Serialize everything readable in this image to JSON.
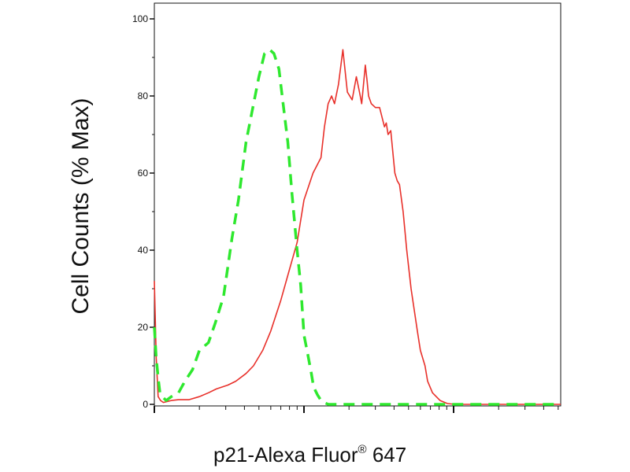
{
  "chart_data": {
    "type": "line",
    "xlabel_main": "p21-Alexa Fluor",
    "xlabel_sup": "®",
    "xlabel_tail": " 647",
    "ylabel": "Cell Counts (% Max)",
    "yticks": [
      "0",
      "20",
      "40",
      "60",
      "80",
      "100"
    ],
    "ylim": [
      0,
      100
    ],
    "x_scale": "log",
    "grid": false,
    "series": [
      {
        "color": "#e8302a",
        "style": "solid",
        "x": [
          1.0,
          1.03,
          1.06,
          1.1,
          1.15,
          1.3,
          1.45,
          1.7,
          2.0,
          2.3,
          2.6,
          3.1,
          3.5,
          4.1,
          4.6,
          5.3,
          6.0,
          7.0,
          8.0,
          9.0,
          10.0,
          11.5,
          13.0,
          13.7,
          14.5,
          15.3,
          16.0,
          17.0,
          18.2,
          19.5,
          21.0,
          22.4,
          23.5,
          24.3,
          25.7,
          26.4,
          27.0,
          28.2,
          30.0,
          32.0,
          34.5,
          35.5,
          36.5,
          38.0,
          40.5,
          42.0,
          43.5,
          46.0,
          48.6,
          52.0,
          57.3,
          60.0,
          64.4,
          67.0,
          72.3,
          81.2,
          91.0,
          102.0,
          115.0,
          128.0,
          140.0,
          153.0,
          180.0,
          230.0,
          320.0,
          500.0,
          800.0,
          1200.0
        ],
        "y": [
          32,
          12,
          2,
          1,
          0.5,
          1,
          1.2,
          1.2,
          2,
          3,
          4,
          5,
          6,
          8,
          10,
          14,
          19,
          27,
          35,
          42,
          53,
          60,
          64,
          72,
          78,
          80,
          78,
          83,
          92,
          81,
          79,
          85,
          81,
          78,
          88,
          84,
          80,
          78,
          77,
          77,
          72,
          73,
          70,
          71,
          60,
          58,
          57,
          50,
          40,
          30,
          19,
          14,
          10,
          6,
          3,
          1,
          0.2,
          0,
          0,
          0,
          0,
          0,
          0,
          0,
          0,
          0,
          0,
          0
        ]
      },
      {
        "color": "#2ee82e",
        "style": "dashed",
        "x": [
          1.0,
          1.03,
          1.06,
          1.09,
          1.13,
          1.2,
          1.3,
          1.45,
          1.6,
          1.8,
          2.0,
          2.3,
          2.55,
          2.9,
          3.3,
          3.65,
          4.1,
          4.5,
          5.0,
          5.45,
          5.9,
          6.3,
          6.8,
          7.2,
          7.8,
          8.3,
          9.0,
          9.5,
          10.0,
          10.6,
          11.2,
          11.6,
          12.3,
          13.0,
          13.5,
          14.6,
          16.2,
          17.5,
          19.0,
          21.0,
          25.0,
          35.0,
          50.0,
          80.0,
          150.0,
          400.0,
          1200.0
        ],
        "y": [
          20,
          12,
          7,
          3,
          2,
          1,
          2,
          3,
          6,
          9,
          14,
          16,
          21,
          28,
          43,
          53,
          68,
          76,
          85,
          91,
          92,
          91,
          87,
          79,
          68,
          55,
          40,
          31,
          18,
          13,
          8,
          4.5,
          2.5,
          1,
          0.5,
          0,
          0,
          0,
          0,
          0,
          0,
          0,
          0,
          0,
          0,
          0,
          0
        ]
      }
    ]
  }
}
